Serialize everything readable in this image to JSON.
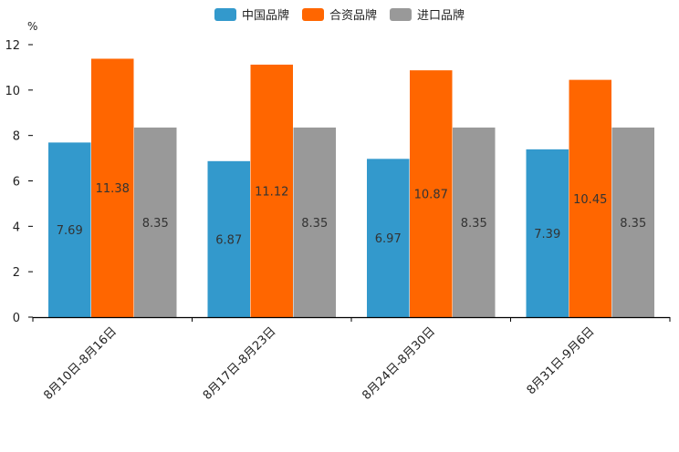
{
  "chart_data": {
    "type": "bar",
    "unit": "%",
    "categories": [
      "8月10日-8月16日",
      "8月17日-8月23日",
      "8月24日-8月30日",
      "8月31日-9月6日"
    ],
    "series": [
      {
        "name": "中国品牌",
        "color": "#3399cc",
        "values": [
          7.69,
          6.87,
          6.97,
          7.39
        ]
      },
      {
        "name": "合资品牌",
        "color": "#ff6600",
        "values": [
          11.38,
          11.12,
          10.87,
          10.45
        ]
      },
      {
        "name": "进口品牌",
        "color": "#999999",
        "values": [
          8.35,
          8.35,
          8.35,
          8.35
        ]
      }
    ],
    "ylim": [
      0,
      12
    ],
    "yticks": [
      0,
      2,
      4,
      6,
      8,
      10,
      12
    ],
    "legend_position": "top-center",
    "grid": false
  }
}
